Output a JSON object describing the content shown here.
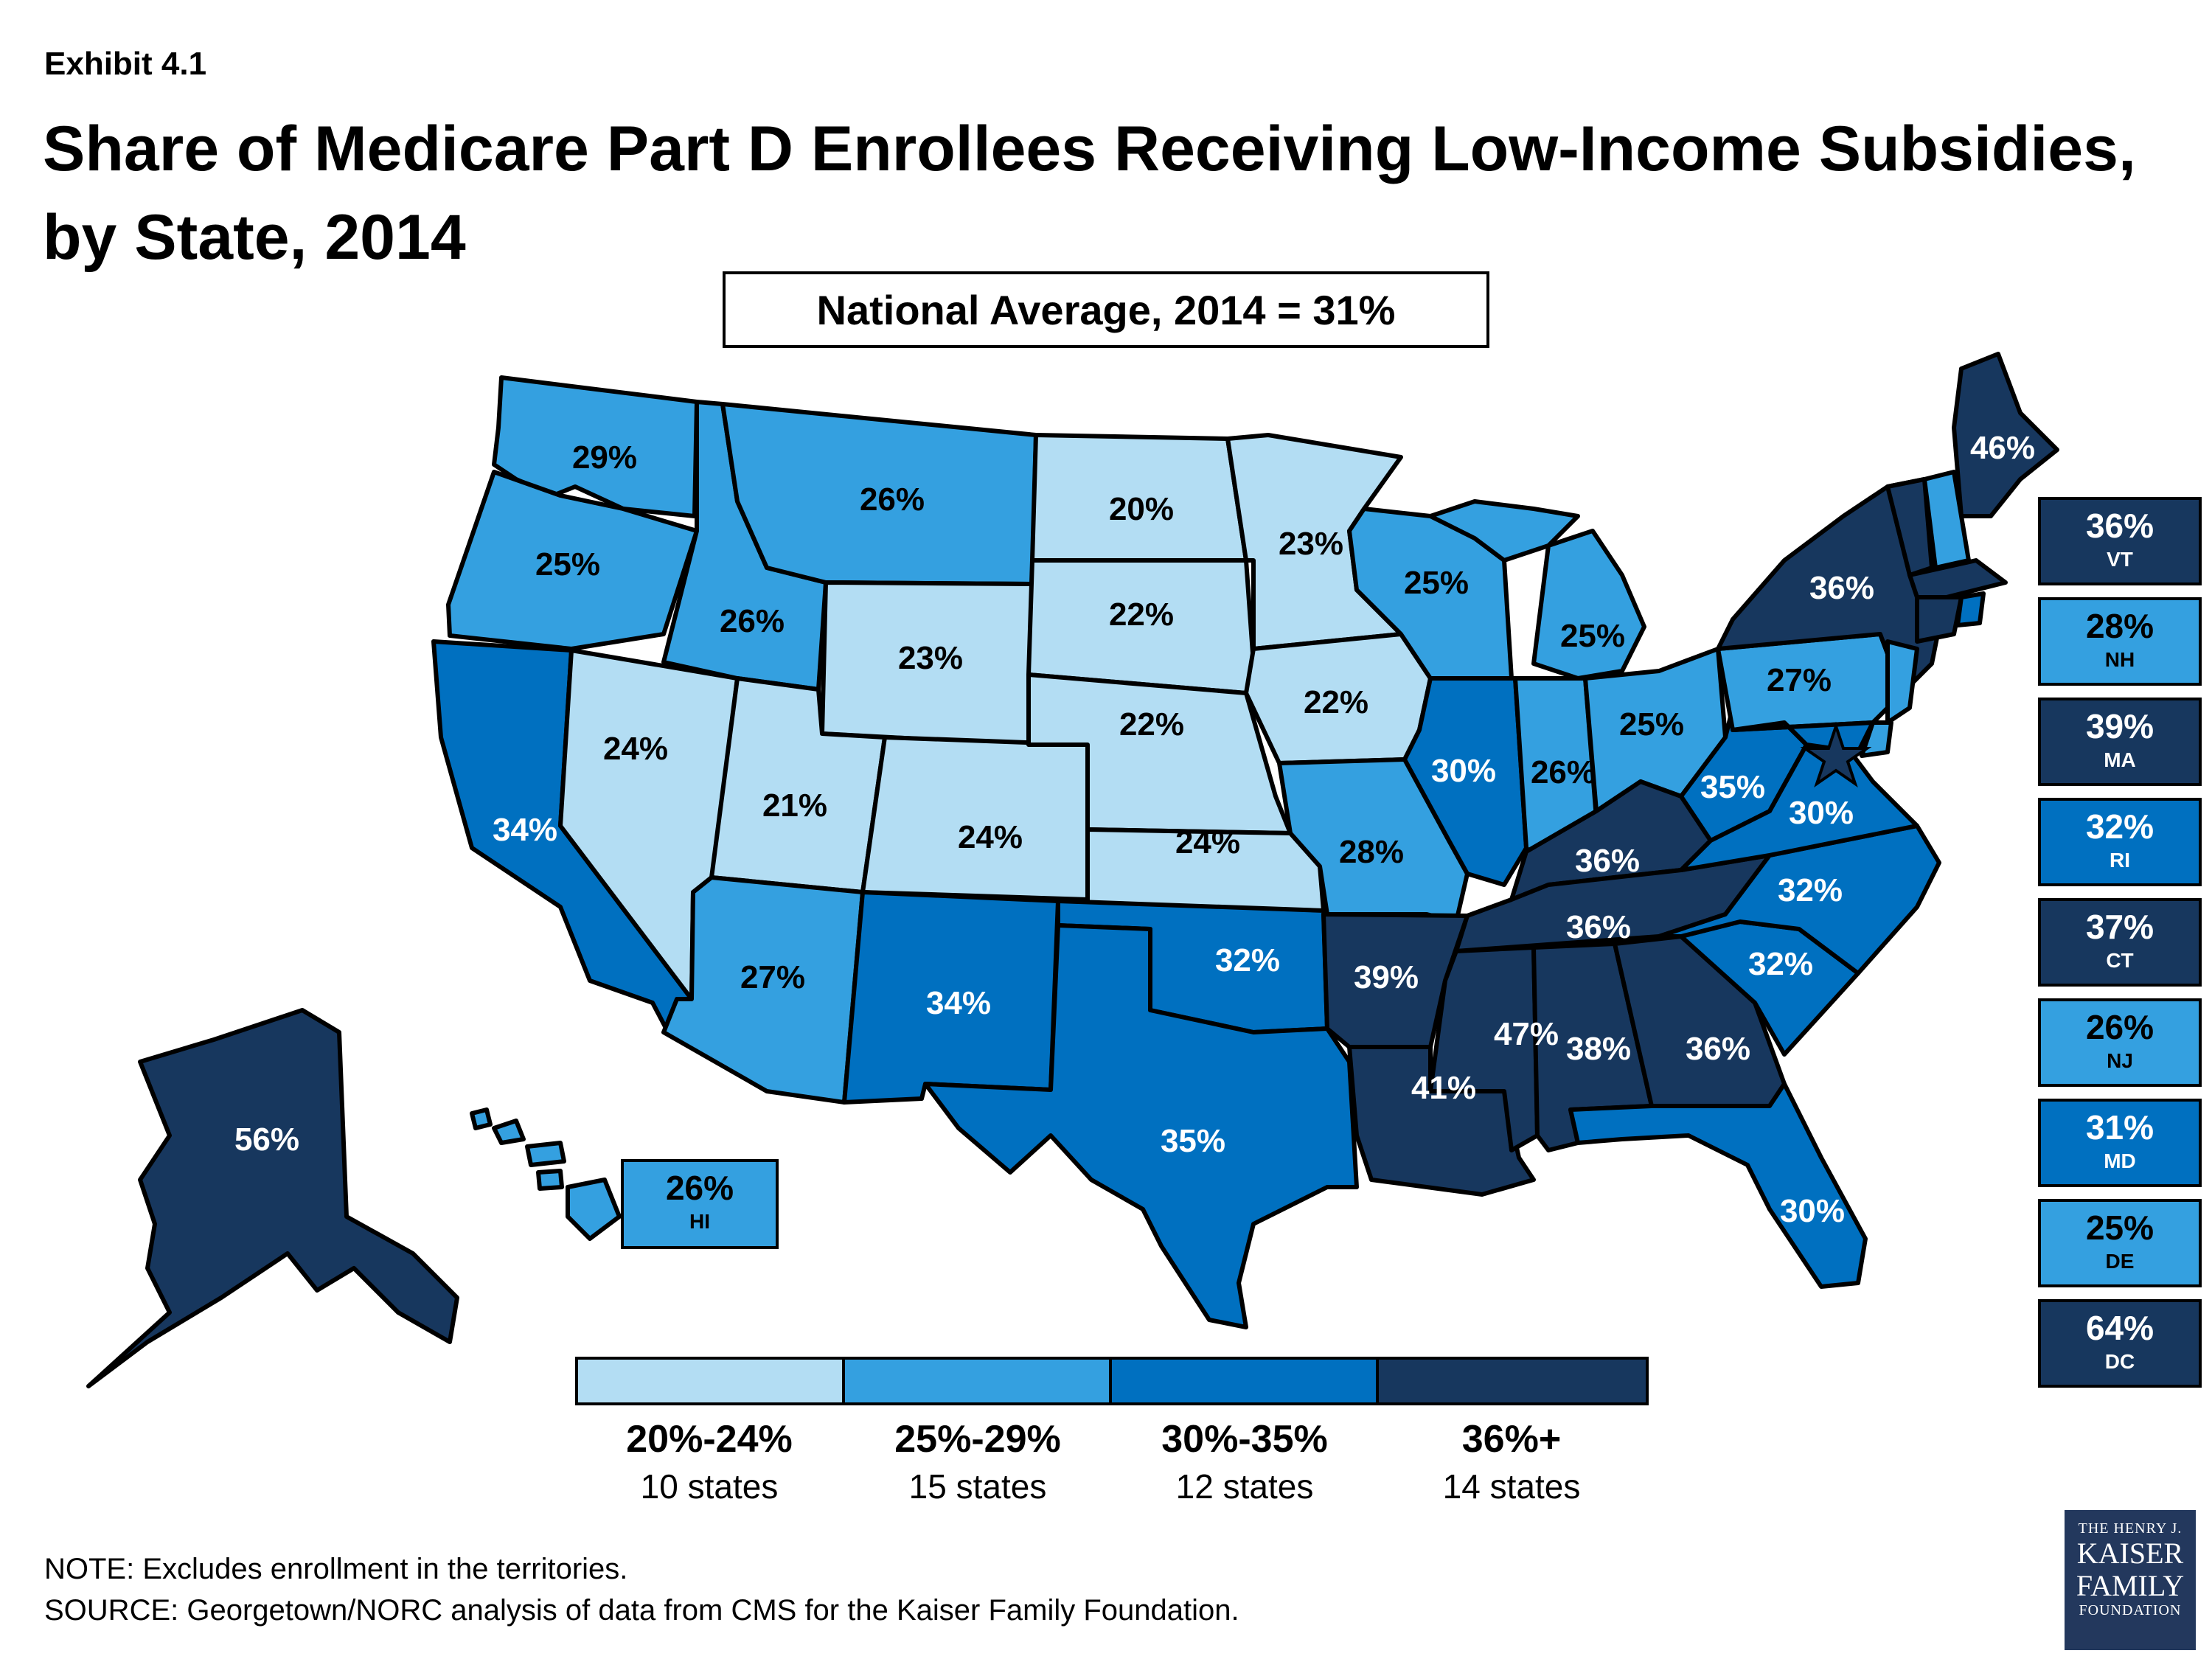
{
  "header": {
    "exhibit": "Exhibit 4.1",
    "title_line1": "Share of Medicare Part D Enrollees Receiving Low-Income Subsidies,",
    "title_line2": "by State, 2014",
    "national_average": "National Average, 2014 = 31%"
  },
  "colors": {
    "c1": "#b3ddf3",
    "c2": "#34a0e0",
    "c3": "#0070c0",
    "c4": "#17375e"
  },
  "states": {
    "WA": "29%",
    "OR": "25%",
    "CA": "34%",
    "NV": "24%",
    "ID": "26%",
    "MT": "26%",
    "WY": "23%",
    "UT": "21%",
    "AZ": "27%",
    "CO": "24%",
    "NM": "34%",
    "ND": "20%",
    "SD": "22%",
    "NE": "22%",
    "KS": "24%",
    "OK": "32%",
    "TX": "35%",
    "MN": "23%",
    "IA": "22%",
    "MO": "28%",
    "AR": "39%",
    "LA": "41%",
    "WI": "25%",
    "IL": "30%",
    "MI": "25%",
    "IN": "26%",
    "OH": "25%",
    "KY": "36%",
    "TN": "36%",
    "MS": "47%",
    "AL": "38%",
    "GA": "36%",
    "FL": "30%",
    "SC": "32%",
    "NC": "32%",
    "VA": "30%",
    "WV": "35%",
    "PA": "27%",
    "NY": "36%",
    "ME": "46%",
    "AK": "56%"
  },
  "hawaii_box": {
    "pct": "26%",
    "abbr": "HI"
  },
  "side_boxes": [
    {
      "pct": "36%",
      "abbr": "VT",
      "bin": "c4"
    },
    {
      "pct": "28%",
      "abbr": "NH",
      "bin": "c2"
    },
    {
      "pct": "39%",
      "abbr": "MA",
      "bin": "c4"
    },
    {
      "pct": "32%",
      "abbr": "RI",
      "bin": "c3"
    },
    {
      "pct": "37%",
      "abbr": "CT",
      "bin": "c4"
    },
    {
      "pct": "26%",
      "abbr": "NJ",
      "bin": "c2"
    },
    {
      "pct": "31%",
      "abbr": "MD",
      "bin": "c3"
    },
    {
      "pct": "25%",
      "abbr": "DE",
      "bin": "c2"
    },
    {
      "pct": "64%",
      "abbr": "DC",
      "bin": "c4"
    }
  ],
  "legend": [
    {
      "range": "20%-24%",
      "count": "10 states"
    },
    {
      "range": "25%-29%",
      "count": "15 states"
    },
    {
      "range": "30%-35%",
      "count": "12 states"
    },
    {
      "range": "36%+",
      "count": "14 states"
    }
  ],
  "footer": {
    "note": "NOTE: Excludes enrollment in the territories.",
    "source": "SOURCE: Georgetown/NORC analysis of data from CMS for the Kaiser Family Foundation."
  },
  "logo": {
    "line1": "THE HENRY J.",
    "line2": "KAISER",
    "line3": "FAMILY",
    "line4": "FOUNDATION"
  }
}
